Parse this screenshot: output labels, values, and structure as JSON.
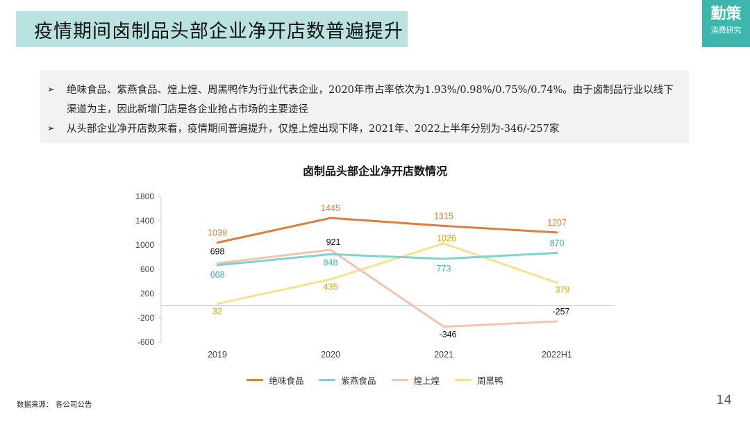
{
  "header": {
    "title": "疫情期间卤制品头部企业净开店数普遍提升"
  },
  "logo": {
    "name": "勤策",
    "subtitle": "消费研究"
  },
  "notes": [
    {
      "bullet": "➢",
      "text": "绝味食品、紫燕食品、煌上煌、周黑鸭作为行业代表企业，2020年市占率依次为1.93%/0.98%/0.75%/0.74%。由于卤制品行业以线下渠道为主，因此新增门店是各企业抢占市场的主要途径"
    },
    {
      "bullet": "➢",
      "text": "从头部企业净开店数来看，疫情期间普遍提升，仅煌上煌出现下降，2021年、2022上半年分别为-346/-257家"
    }
  ],
  "chart_data": {
    "type": "line",
    "title": "卤制品头部企业净开店数情况",
    "categories": [
      "2019",
      "2020",
      "2021",
      "2022H1"
    ],
    "ylim": [
      -600,
      1800
    ],
    "yticks": [
      -600,
      -200,
      200,
      600,
      1000,
      1400,
      1800
    ],
    "grid": false,
    "legend_position": "bottom",
    "series": [
      {
        "name": "绝味食品",
        "color": "#e07b39",
        "label_color": "#e07b39",
        "values": [
          1039,
          1445,
          1315,
          1207
        ]
      },
      {
        "name": "紫燕食品",
        "color": "#7fd3cf",
        "label_color": "#3fb6ad",
        "values": [
          668,
          848,
          773,
          870
        ]
      },
      {
        "name": "煌上煌",
        "color": "#f2c4ad",
        "label_color": "#111111",
        "values": [
          698,
          921,
          -346,
          -257
        ]
      },
      {
        "name": "周黑鸭",
        "color": "#f7e18e",
        "label_color": "#e0a800",
        "values": [
          32,
          435,
          1026,
          379
        ]
      }
    ]
  },
  "footer": {
    "source": "数据来源： 各公司公告",
    "page": "14"
  }
}
